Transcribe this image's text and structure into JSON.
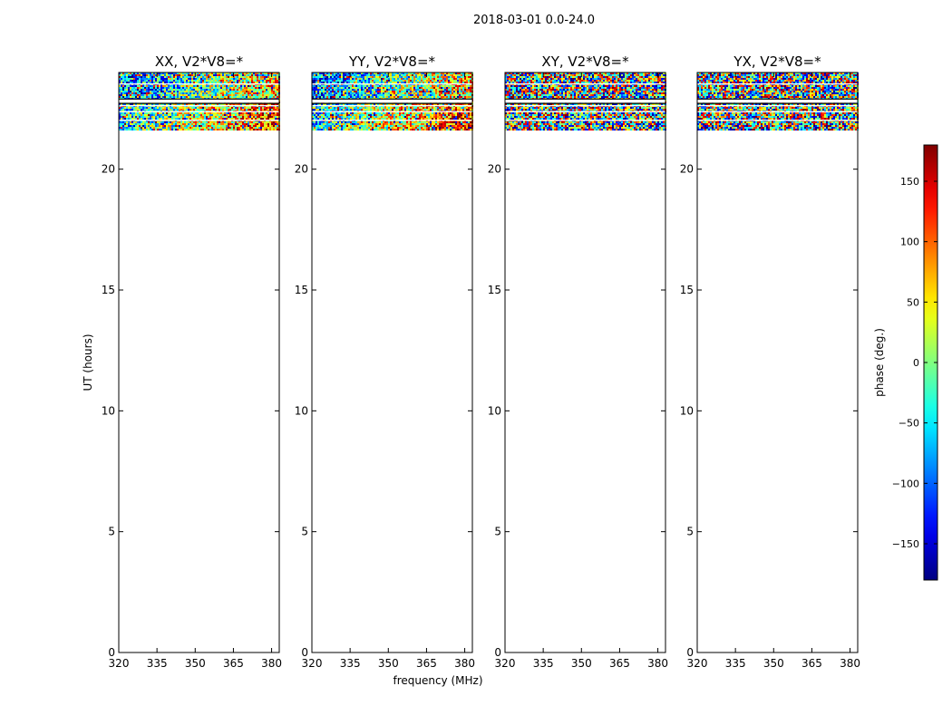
{
  "figure_title": "2018-03-01 0.0-24.0",
  "chart_data": {
    "type": "heatmap",
    "panels": [
      {
        "title": "XX, V2*V8=*"
      },
      {
        "title": "YY, V2*V8=*"
      },
      {
        "title": "XY, V2*V8=*"
      },
      {
        "title": "YX, V2*V8=*"
      }
    ],
    "xlabel": "frequency (MHz)",
    "ylabel": "UT (hours)",
    "xlim": [
      320,
      383
    ],
    "ylim": [
      0,
      24
    ],
    "xticks": [
      320,
      335,
      350,
      365,
      380
    ],
    "yticks": [
      0,
      5,
      10,
      15,
      20
    ],
    "data_time_range_hours": [
      21.6,
      24.0
    ],
    "white_gap_bands_hours": [
      [
        22.75,
        22.9
      ],
      [
        22.6,
        22.65
      ],
      [
        23.5,
        23.55
      ],
      [
        22.35,
        22.4
      ],
      [
        22.0,
        22.05
      ]
    ],
    "colorbar": {
      "label": "phase (deg.)",
      "range": [
        -180,
        180
      ],
      "ticks": [
        150,
        100,
        50,
        0,
        -50,
        -100,
        -150
      ],
      "tick_labels": [
        "150",
        "100",
        "50",
        "0",
        "−50",
        "−100",
        "−150"
      ],
      "colormap": "jet"
    }
  }
}
